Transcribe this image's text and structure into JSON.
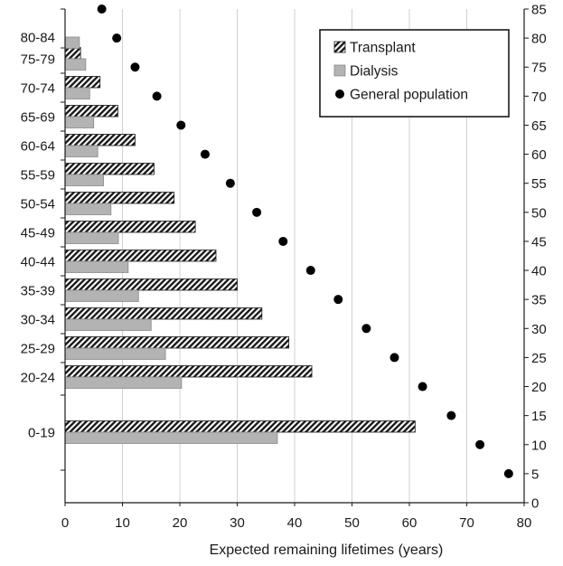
{
  "chart_data": {
    "type": "bar",
    "orientation": "horizontal",
    "xlabel": "Expected remaining lifetimes (years)",
    "xlim": [
      0,
      80
    ],
    "xticks": [
      "0",
      "10",
      "20",
      "30",
      "40",
      "50",
      "60",
      "70",
      "80"
    ],
    "y2lim": [
      0,
      85
    ],
    "y2ticks": [
      "0",
      "5",
      "10",
      "15",
      "20",
      "25",
      "30",
      "35",
      "40",
      "45",
      "50",
      "55",
      "60",
      "65",
      "70",
      "75",
      "80",
      "85"
    ],
    "grid": "vertical",
    "legend_position": "top-right",
    "categories": [
      "0-19",
      "20-24",
      "25-29",
      "30-34",
      "35-39",
      "40-44",
      "45-49",
      "50-54",
      "55-59",
      "60-64",
      "65-69",
      "70-74",
      "75-79",
      "80-84"
    ],
    "series": [
      {
        "name": "Transplant",
        "style": "hatched",
        "color": "#1a1a1a",
        "values": [
          61,
          43,
          39,
          34.3,
          30,
          26.3,
          22.7,
          19,
          15.5,
          12.2,
          9.2,
          6.1,
          2.7,
          null
        ]
      },
      {
        "name": "Dialysis",
        "style": "solid",
        "color": "#b3b3b3",
        "values": [
          37,
          20.3,
          17.5,
          15,
          12.8,
          11,
          9.3,
          8,
          6.7,
          5.7,
          5,
          4.3,
          3.6,
          2.5
        ]
      },
      {
        "name": "General population",
        "style": "marker",
        "color": "#000000",
        "x": [
          77.3,
          72.3,
          67.3,
          62.3,
          57.4,
          52.5,
          47.6,
          42.8,
          38,
          33.4,
          28.8,
          24.4,
          20.2,
          16,
          12.2,
          9,
          6.4
        ],
        "y": [
          5,
          10,
          15,
          20,
          25,
          30,
          35,
          40,
          45,
          50,
          55,
          60,
          65,
          70,
          75,
          80,
          85
        ]
      }
    ]
  }
}
